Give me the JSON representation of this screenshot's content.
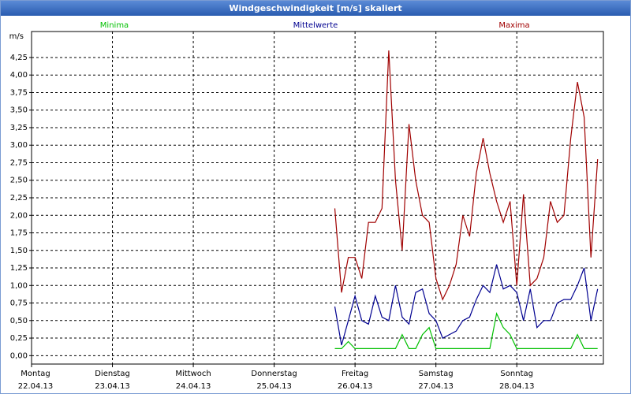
{
  "chart_data": {
    "type": "line",
    "title": "Windgeschwindigkeit [m/s] skaliert",
    "ylabel": "m/s",
    "x": [
      90,
      92,
      94,
      96,
      98,
      100,
      102,
      104,
      106,
      108,
      110,
      112,
      114,
      116,
      118,
      120,
      122,
      124,
      126,
      128,
      130,
      132,
      134,
      136,
      138,
      140,
      142,
      144,
      146,
      148,
      150,
      152,
      154,
      156,
      158,
      160,
      162,
      164,
      166,
      168
    ],
    "series": [
      {
        "name": "Minima",
        "color": "#00c000",
        "values": [
          0.1,
          0.1,
          0.2,
          0.1,
          0.1,
          0.1,
          0.1,
          0.1,
          0.1,
          0.1,
          0.3,
          0.1,
          0.1,
          0.3,
          0.4,
          0.1,
          0.1,
          0.1,
          0.1,
          0.1,
          0.1,
          0.1,
          0.1,
          0.1,
          0.6,
          0.4,
          0.3,
          0.1,
          0.1,
          0.1,
          0.1,
          0.1,
          0.1,
          0.1,
          0.1,
          0.1,
          0.3,
          0.1,
          0.1,
          0.1
        ]
      },
      {
        "name": "Mittelwerte",
        "color": "#000090",
        "values": [
          0.7,
          0.15,
          0.5,
          0.85,
          0.5,
          0.45,
          0.85,
          0.55,
          0.5,
          1.0,
          0.55,
          0.45,
          0.9,
          0.95,
          0.6,
          0.5,
          0.25,
          0.3,
          0.35,
          0.5,
          0.55,
          0.8,
          1.0,
          0.9,
          1.3,
          0.95,
          1.0,
          0.9,
          0.5,
          0.95,
          0.4,
          0.5,
          0.5,
          0.75,
          0.8,
          0.8,
          1.0,
          1.25,
          0.5,
          0.95
        ]
      },
      {
        "name": "Maxima",
        "color": "#a00000",
        "values": [
          2.1,
          0.9,
          1.4,
          1.4,
          1.1,
          1.9,
          1.9,
          2.1,
          4.35,
          2.5,
          1.5,
          3.3,
          2.5,
          2.0,
          1.9,
          1.1,
          0.8,
          1.0,
          1.3,
          2.0,
          1.7,
          2.6,
          3.1,
          2.6,
          2.2,
          1.9,
          2.2,
          1.0,
          2.3,
          1.0,
          1.1,
          1.4,
          2.2,
          1.9,
          2.0,
          3.1,
          3.9,
          3.4,
          1.4,
          2.8
        ]
      }
    ],
    "xlim": [
      0,
      169.7
    ],
    "xticks": [
      {
        "value": 0,
        "label": [
          "Montag",
          "22.04.13"
        ]
      },
      {
        "value": 24,
        "label": [
          "Dienstag",
          "23.04.13"
        ]
      },
      {
        "value": 48,
        "label": [
          "Mittwoch",
          "24.04.13"
        ]
      },
      {
        "value": 72,
        "label": [
          "Donnerstag",
          "25.04.13"
        ]
      },
      {
        "value": 96,
        "label": [
          "Freitag",
          "26.04.13"
        ]
      },
      {
        "value": 120,
        "label": [
          "Samstag",
          "27.04.13"
        ]
      },
      {
        "value": 144,
        "label": [
          "Sonntag",
          "28.04.13"
        ]
      }
    ],
    "ylim": [
      -0.12,
      4.62
    ],
    "yticks": [
      {
        "value": 0,
        "label": "0,00"
      },
      {
        "value": 0.25,
        "label": "0,25"
      },
      {
        "value": 0.5,
        "label": "0,50"
      },
      {
        "value": 0.75,
        "label": "0,75"
      },
      {
        "value": 1,
        "label": "1,00"
      },
      {
        "value": 1.25,
        "label": "1,25"
      },
      {
        "value": 1.5,
        "label": "1,50"
      },
      {
        "value": 1.75,
        "label": "1,75"
      },
      {
        "value": 2,
        "label": "2,00"
      },
      {
        "value": 2.25,
        "label": "2,25"
      },
      {
        "value": 2.5,
        "label": "2,50"
      },
      {
        "value": 2.75,
        "label": "2,75"
      },
      {
        "value": 3,
        "label": "3,00"
      },
      {
        "value": 3.25,
        "label": "3,25"
      },
      {
        "value": 3.5,
        "label": "3,50"
      },
      {
        "value": 3.75,
        "label": "3,75"
      },
      {
        "value": 4,
        "label": "4,00"
      },
      {
        "value": 4.25,
        "label": "4,25"
      }
    ],
    "grid": true
  }
}
